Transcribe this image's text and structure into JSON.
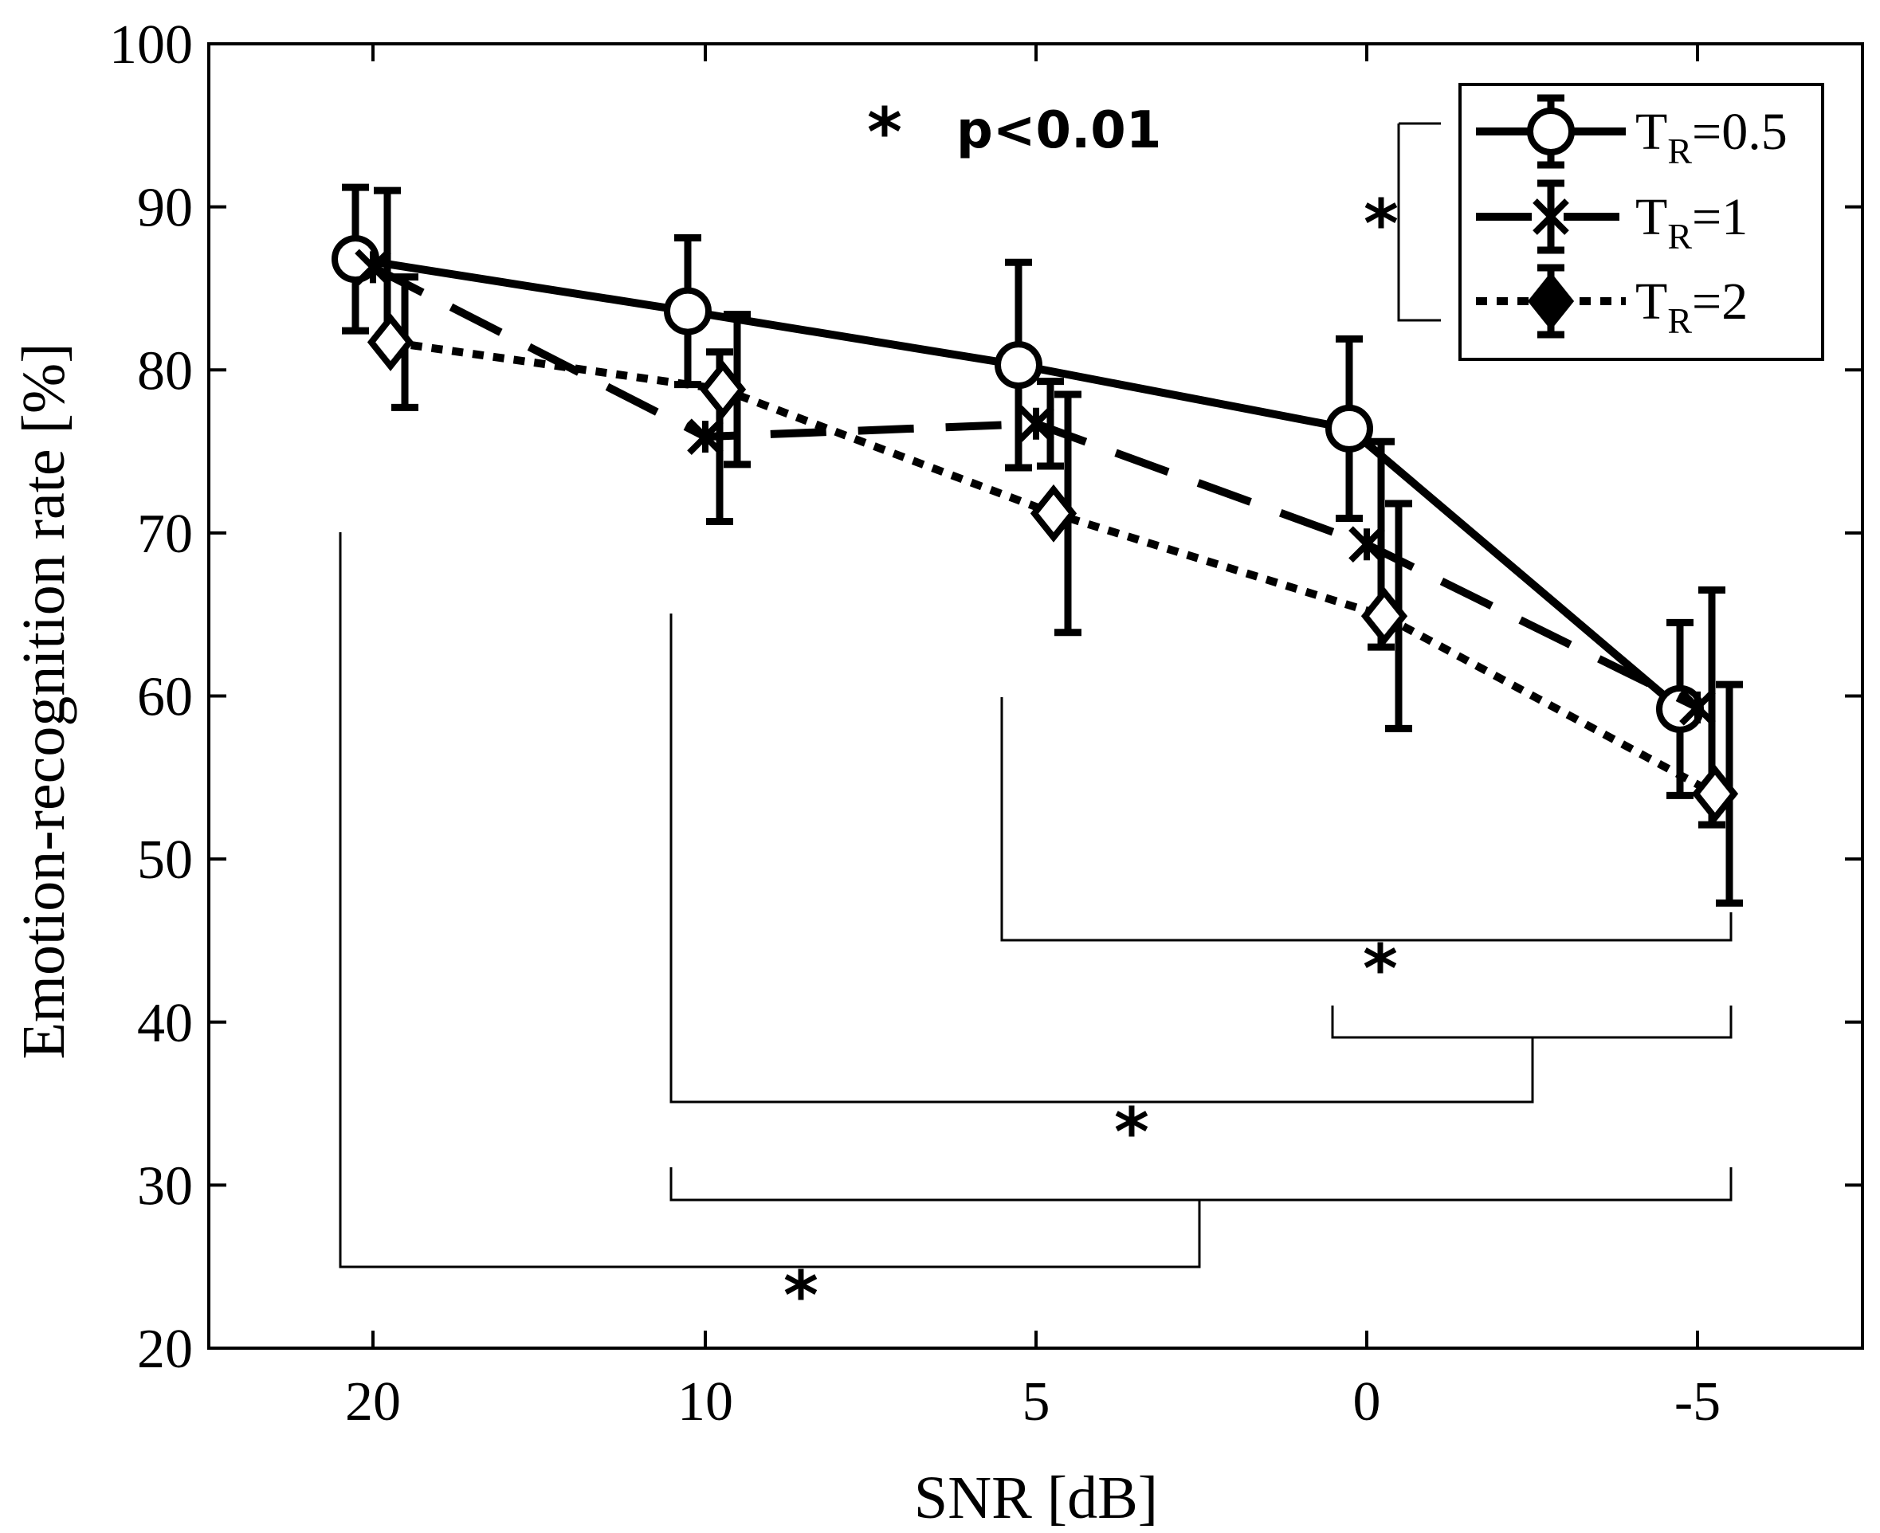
{
  "chart_data": {
    "type": "line",
    "xlabel": "SNR [dB]",
    "ylabel": "Emotion-recognition rate [%]",
    "categories": [
      "20",
      "10",
      "5",
      "0",
      "-5"
    ],
    "ylim": [
      20,
      100
    ],
    "yticks": [
      20,
      30,
      40,
      50,
      60,
      70,
      80,
      90,
      100
    ],
    "series": [
      {
        "name": "T_R=0.5",
        "label_main": "T",
        "label_sub": "R",
        "label_rest": "=0.5",
        "style": "solid",
        "marker": "circle",
        "values": [
          86.8,
          83.6,
          80.3,
          76.4,
          59.2
        ],
        "err": [
          4.4,
          4.5,
          6.3,
          5.5,
          5.3
        ]
      },
      {
        "name": "T_R=1",
        "label_main": "T",
        "label_sub": "R",
        "label_rest": "=1",
        "style": "dashed",
        "marker": "asterisk",
        "values": [
          86.3,
          75.9,
          76.7,
          69.3,
          59.3
        ],
        "err": [
          4.7,
          5.2,
          2.6,
          6.3,
          7.2
        ]
      },
      {
        "name": "T_R=2",
        "label_main": "T",
        "label_sub": "R",
        "label_rest": "=2",
        "style": "dotted",
        "marker": "diamond",
        "values": [
          81.7,
          78.8,
          71.2,
          64.9,
          54.0
        ],
        "err": [
          4.0,
          4.6,
          7.3,
          6.9,
          6.7
        ]
      }
    ],
    "annotations": {
      "significance_symbol": "*",
      "significance_note": "p<0.01",
      "legend_bracket_star": "*",
      "bracket_stars": [
        "*",
        "*",
        "*"
      ]
    },
    "legend_position": "top-right",
    "grid": false
  }
}
